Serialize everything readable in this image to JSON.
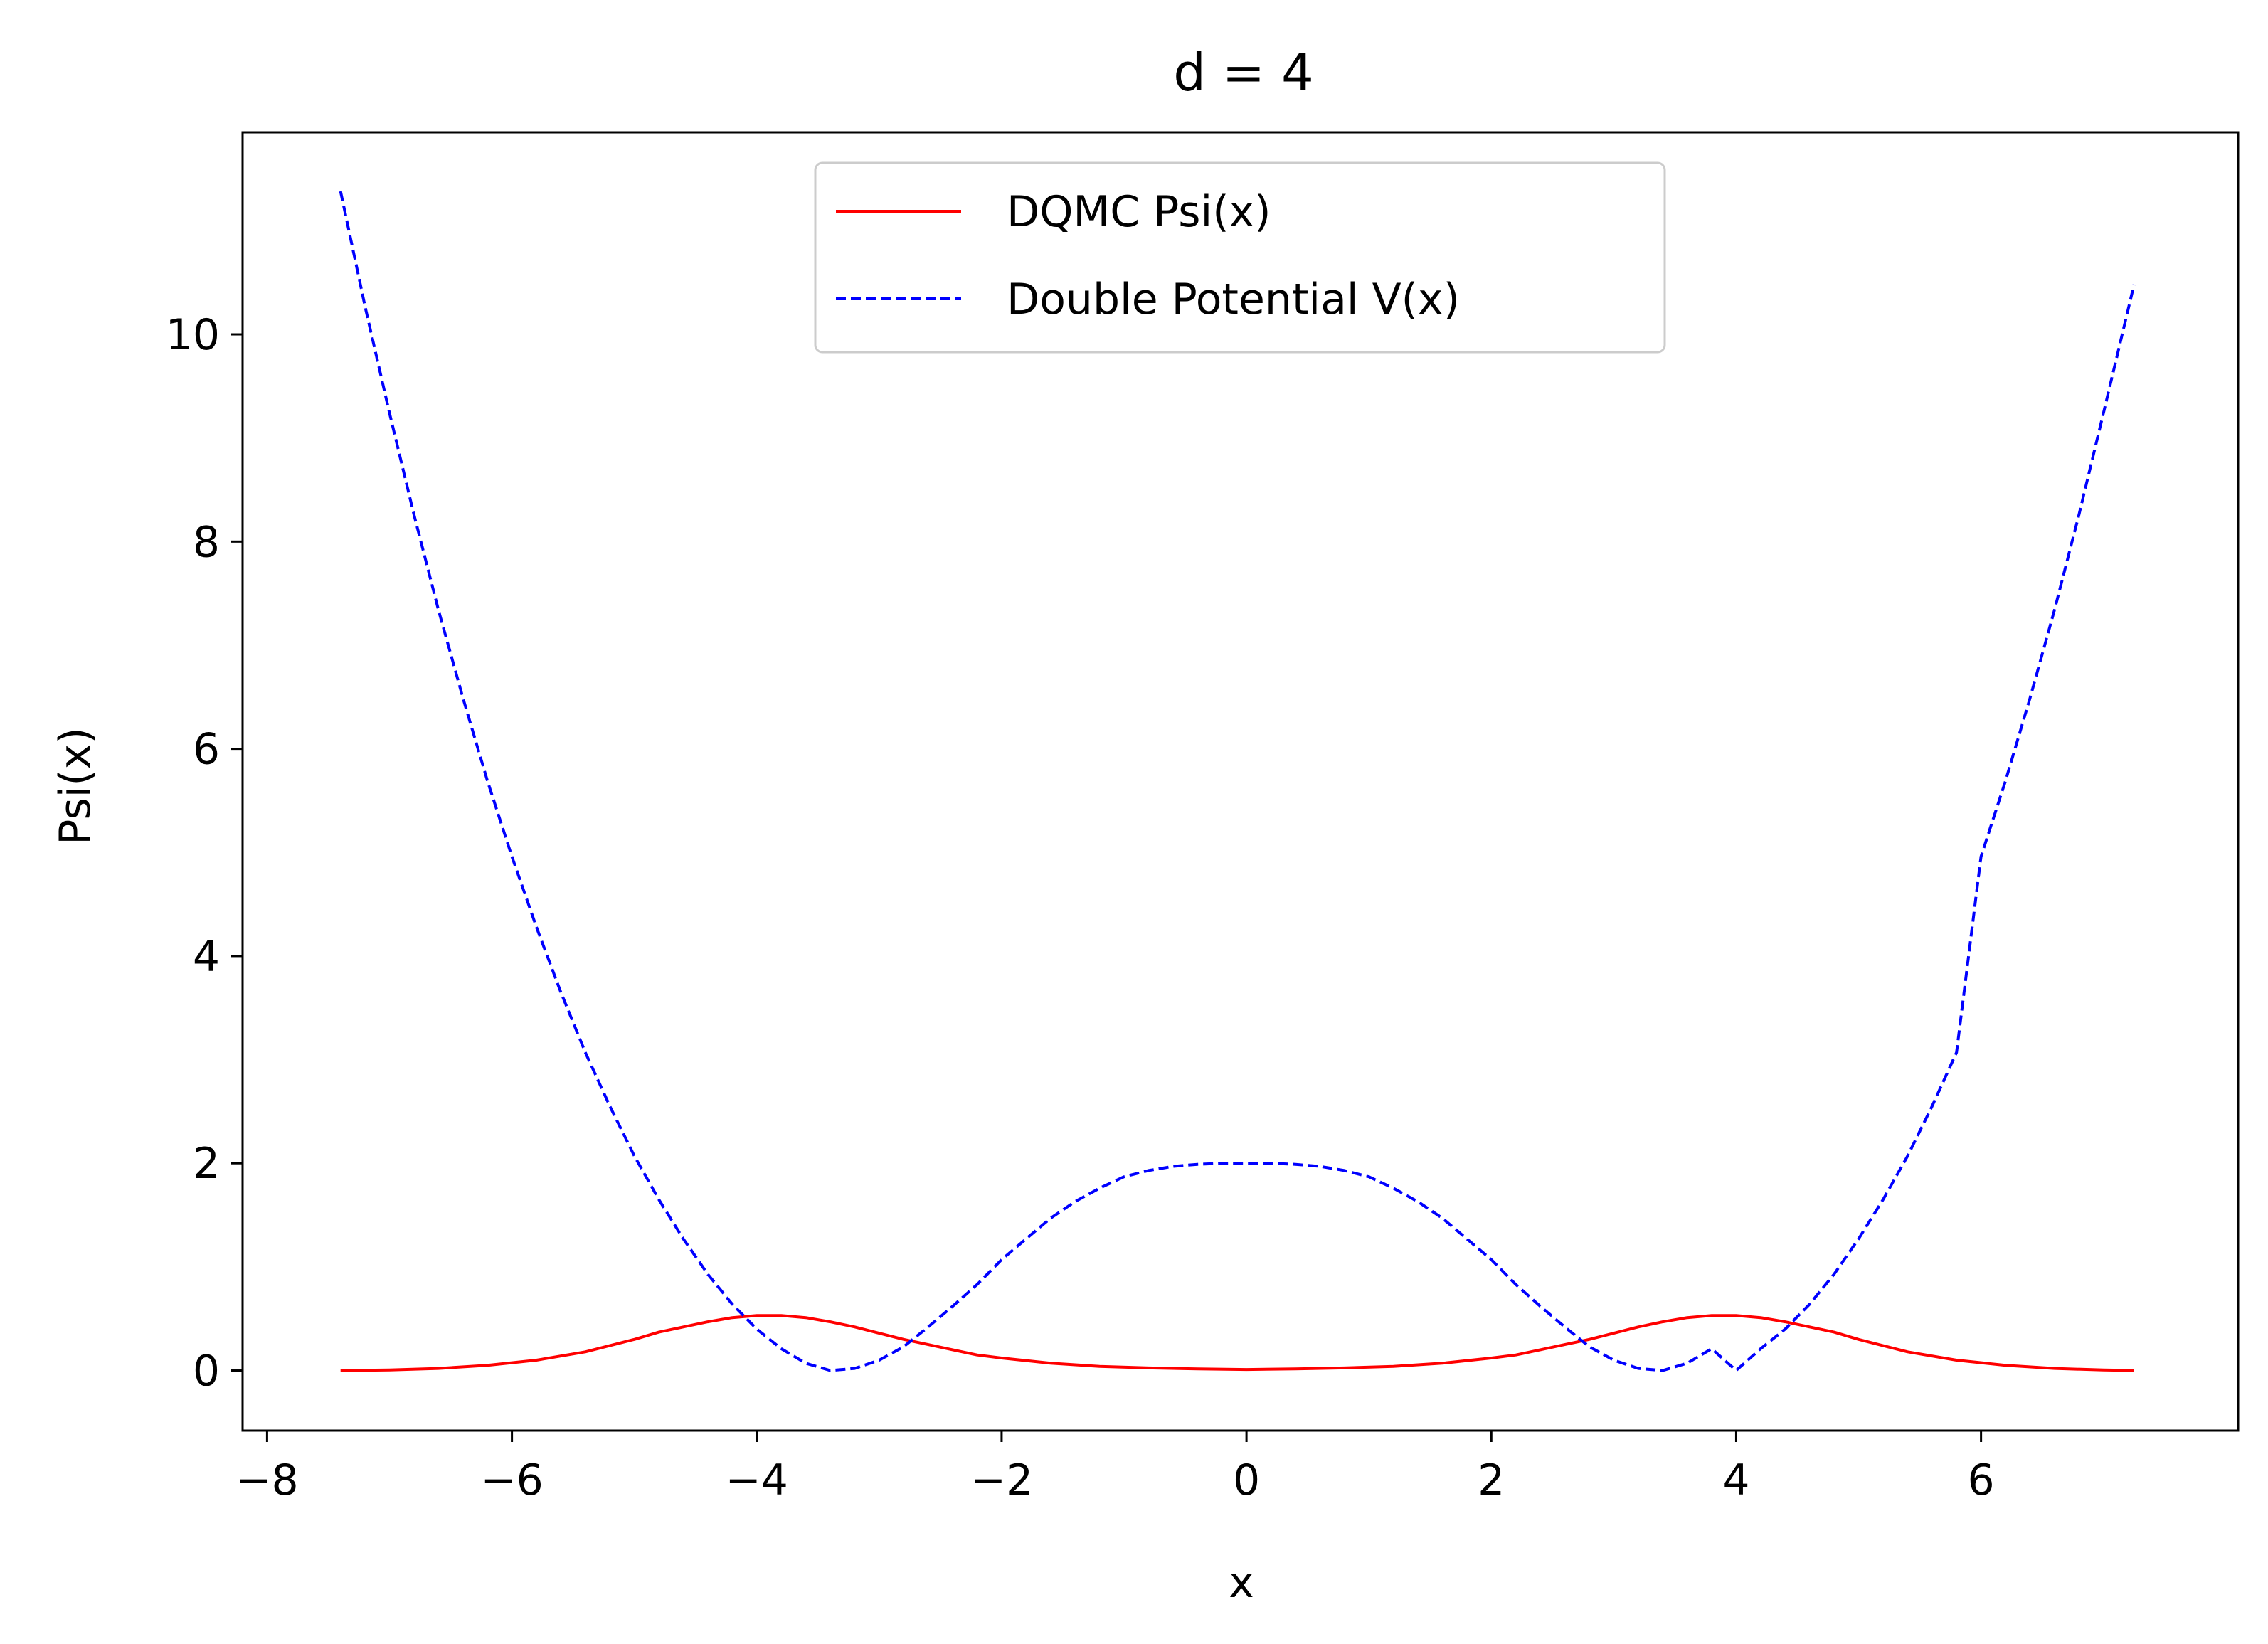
{
  "chart_data": {
    "type": "line",
    "title": "d = 4",
    "xlabel": "x",
    "ylabel": "Psi(x)",
    "xlim": [
      -8.2,
      8.1
    ],
    "ylim": [
      -0.58,
      11.95
    ],
    "xticks": [
      -8,
      -6,
      -4,
      -2,
      0,
      2,
      4,
      6
    ],
    "yticks": [
      0,
      2,
      4,
      6,
      8,
      10
    ],
    "xtick_labels": [
      "−8",
      "−6",
      "−4",
      "−2",
      "0",
      "2",
      "4",
      "6"
    ],
    "ytick_labels": [
      "0",
      "2",
      "4",
      "6",
      "8",
      "10"
    ],
    "grid": false,
    "legend_position": "top-center",
    "series": [
      {
        "name": "DQMC Psi(x)",
        "color": "#ff0000",
        "style": "solid",
        "x": [
          -7.4,
          -7.0,
          -6.6,
          -6.2,
          -5.8,
          -5.4,
          -5.0,
          -4.8,
          -4.6,
          -4.4,
          -4.2,
          -4.0,
          -3.8,
          -3.6,
          -3.4,
          -3.2,
          -3.0,
          -2.8,
          -2.6,
          -2.4,
          -2.2,
          -2.0,
          -1.6,
          -1.2,
          -0.8,
          -0.4,
          0.0,
          0.4,
          0.8,
          1.2,
          1.6,
          2.0,
          2.2,
          2.4,
          2.6,
          2.8,
          3.0,
          3.2,
          3.4,
          3.6,
          3.8,
          4.0,
          4.2,
          4.4,
          4.6,
          4.8,
          5.0,
          5.4,
          5.8,
          6.2,
          6.6,
          7.0,
          7.25
        ],
        "y": [
          0.0,
          0.005,
          0.02,
          0.05,
          0.1,
          0.18,
          0.3,
          0.37,
          0.42,
          0.47,
          0.51,
          0.53,
          0.53,
          0.51,
          0.47,
          0.42,
          0.36,
          0.3,
          0.25,
          0.2,
          0.15,
          0.12,
          0.07,
          0.04,
          0.025,
          0.015,
          0.01,
          0.015,
          0.025,
          0.04,
          0.07,
          0.12,
          0.15,
          0.2,
          0.25,
          0.3,
          0.36,
          0.42,
          0.47,
          0.51,
          0.53,
          0.53,
          0.51,
          0.47,
          0.42,
          0.37,
          0.3,
          0.18,
          0.1,
          0.05,
          0.02,
          0.005,
          0.0
        ]
      },
      {
        "name": "Double Potential V(x)",
        "color": "#0000ff",
        "style": "dashed",
        "x": [
          -7.4,
          -7.2,
          -7.0,
          -6.8,
          -6.6,
          -6.4,
          -6.2,
          -6.0,
          -5.8,
          -5.6,
          -5.4,
          -5.2,
          -5.0,
          -4.8,
          -4.6,
          -4.4,
          -4.2,
          -4.0,
          -3.8,
          -3.6,
          -3.4,
          -3.2,
          -3.0,
          -2.8,
          -2.6,
          -2.4,
          -2.2,
          -2.0,
          -1.8,
          -1.6,
          -1.4,
          -1.2,
          -1.0,
          -0.8,
          -0.6,
          -0.4,
          -0.2,
          0.0,
          0.2,
          0.4,
          0.6,
          0.8,
          1.0,
          1.2,
          1.4,
          1.6,
          1.8,
          2.0,
          2.2,
          2.4,
          2.6,
          2.8,
          3.0,
          3.2,
          3.4,
          3.6,
          3.8,
          4.0,
          4.2,
          4.4,
          4.6,
          4.8,
          5.0,
          5.2,
          5.4,
          5.6,
          5.8,
          6.0,
          6.2,
          6.4,
          6.6,
          6.8,
          7.0,
          7.25
        ],
        "y": [
          11.38,
          10.27,
          9.24,
          8.26,
          7.34,
          6.49,
          5.69,
          4.96,
          4.28,
          3.65,
          3.07,
          2.55,
          2.07,
          1.65,
          1.27,
          0.93,
          0.64,
          0.4,
          0.21,
          0.07,
          0.0,
          0.02,
          0.1,
          0.23,
          0.42,
          0.62,
          0.83,
          1.07,
          1.27,
          1.47,
          1.63,
          1.76,
          1.87,
          1.93,
          1.97,
          1.99,
          2.0,
          2.0,
          2.0,
          1.99,
          1.97,
          1.93,
          1.87,
          1.76,
          1.63,
          1.47,
          1.27,
          1.07,
          0.83,
          0.62,
          0.42,
          0.23,
          0.1,
          0.02,
          0.0,
          0.07,
          0.21,
          0.0,
          0.21,
          0.4,
          0.64,
          0.93,
          1.27,
          1.65,
          2.07,
          2.55,
          3.07,
          4.96,
          5.69,
          6.49,
          7.34,
          8.26,
          9.24,
          10.48
        ]
      }
    ]
  }
}
